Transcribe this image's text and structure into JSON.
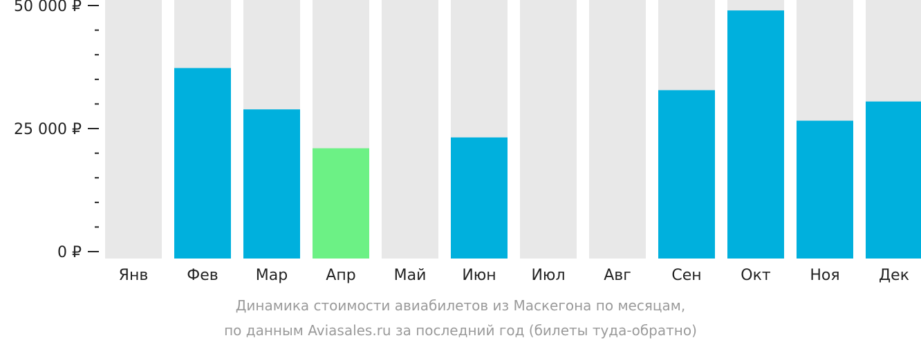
{
  "chart_data": {
    "type": "bar",
    "categories": [
      "Янв",
      "Фев",
      "Мар",
      "Апр",
      "Май",
      "Июн",
      "Июл",
      "Авг",
      "Сен",
      "Окт",
      "Ноя",
      "Дек"
    ],
    "values": [
      null,
      37300,
      28900,
      21000,
      null,
      23200,
      null,
      null,
      32800,
      49000,
      26600,
      30500
    ],
    "ylim": [
      0,
      50000
    ],
    "yticks": [
      {
        "value": 0,
        "label": "0 ₽"
      },
      {
        "value": 25000,
        "label": "25 000 ₽"
      },
      {
        "value": 50000,
        "label": "50 000 ₽"
      }
    ],
    "minor_tick_step": 5000,
    "highlight_index": 3,
    "colors": {
      "bar": "#00b0dd",
      "highlight": "#6cf185",
      "background_bar": "#e8e8e8",
      "axis": "#222222"
    },
    "grid": false,
    "legend": "none"
  },
  "caption": {
    "line1": "Динамика стоимости авиабилетов из Маскегона по месяцам,",
    "line2": "по данным Aviasales.ru за последний год (билеты туда-обратно)"
  }
}
